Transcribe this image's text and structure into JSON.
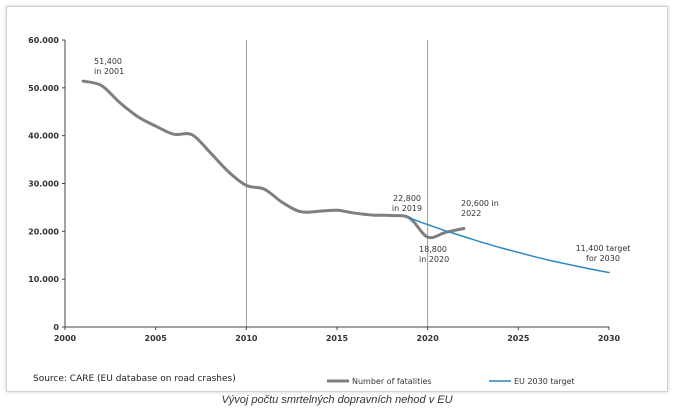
{
  "caption": "Vývoj počtu smrtelných dopravních nehod v EU",
  "source": "Source: CARE (EU database on road crashes)",
  "colors": {
    "fatalities": "#7f7f7f",
    "target": "#2e86c1",
    "grid": "#888888",
    "axis": "#444444"
  },
  "chart_data": {
    "type": "line",
    "xlim": [
      2000,
      2030
    ],
    "ylim": [
      0,
      60000
    ],
    "x_ticks": [
      {
        "value": 2000,
        "label": "2000"
      },
      {
        "value": 2005,
        "label": "2005"
      },
      {
        "value": 2010,
        "label": "2010"
      },
      {
        "value": 2015,
        "label": "2015"
      },
      {
        "value": 2020,
        "label": "2020"
      },
      {
        "value": 2025,
        "label": "2025"
      },
      {
        "value": 2030,
        "label": "2030"
      }
    ],
    "y_ticks": [
      {
        "value": 0,
        "label": "0"
      },
      {
        "value": 10000,
        "label": "10.000"
      },
      {
        "value": 20000,
        "label": "20.000"
      },
      {
        "value": 30000,
        "label": "30.000"
      },
      {
        "value": 40000,
        "label": "40.000"
      },
      {
        "value": 50000,
        "label": "50.000"
      },
      {
        "value": 60000,
        "label": "60.000"
      }
    ],
    "vertical_gridlines": [
      2010,
      2020
    ],
    "series": [
      {
        "name": "Number of fatalities",
        "color": "#7f7f7f",
        "x": [
          2001,
          2002,
          2003,
          2004,
          2005,
          2006,
          2007,
          2008,
          2009,
          2010,
          2011,
          2012,
          2013,
          2014,
          2015,
          2016,
          2017,
          2018,
          2019,
          2020,
          2021,
          2022
        ],
        "y": [
          51400,
          50500,
          47000,
          44000,
          42000,
          40300,
          40200,
          36500,
          32500,
          29600,
          28800,
          26000,
          24100,
          24200,
          24400,
          23800,
          23400,
          23300,
          22800,
          18800,
          19800,
          20600
        ]
      },
      {
        "name": "EU 2030 target",
        "color": "#2e86c1",
        "x": [
          2019,
          2020,
          2021,
          2022,
          2023,
          2024,
          2025,
          2026,
          2027,
          2028,
          2029,
          2030
        ],
        "y": [
          22800,
          21400,
          20100,
          18900,
          17700,
          16600,
          15600,
          14600,
          13700,
          12900,
          12100,
          11400
        ]
      }
    ],
    "annotations": [
      {
        "lines": [
          "51,400",
          "in 2001"
        ]
      },
      {
        "lines": [
          "22,800",
          "in 2019"
        ]
      },
      {
        "lines": [
          "20,600 in",
          "2022"
        ]
      },
      {
        "lines": [
          "18,800",
          "in 2020"
        ]
      },
      {
        "lines": [
          "11,400 target",
          "for 2030"
        ]
      }
    ]
  }
}
